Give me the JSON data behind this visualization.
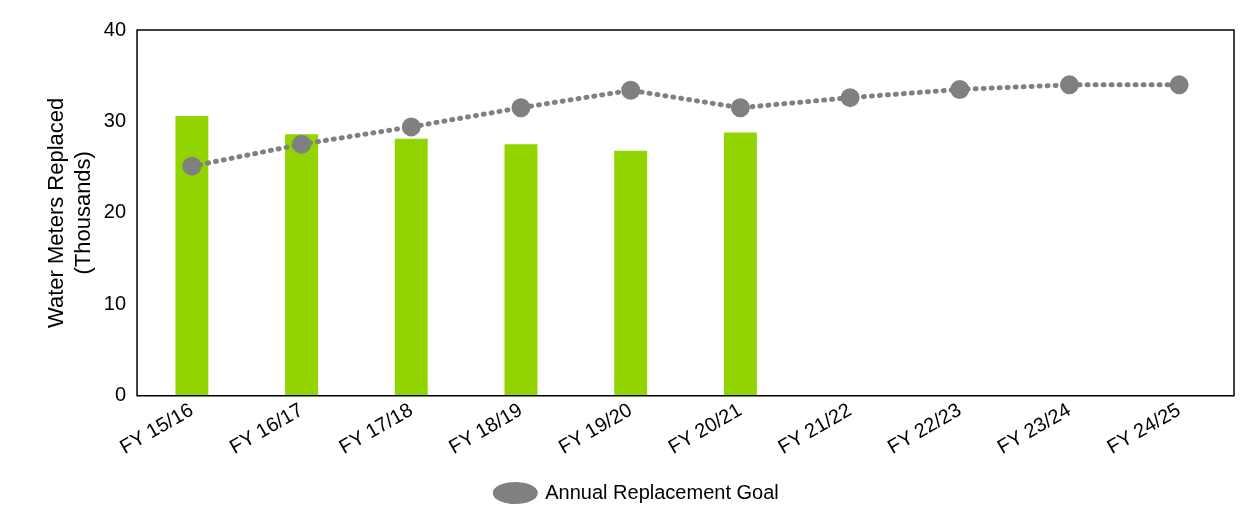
{
  "chart_data": {
    "type": "bar",
    "ylabel": "Water Meters Replaced\n(Thousands)",
    "categories": [
      "FY 15/16",
      "FY 16/17",
      "FY 17/18",
      "FY 18/19",
      "FY 19/20",
      "FY 20/21",
      "FY 21/22",
      "FY 22/23",
      "FY 23/24",
      "FY 24/25"
    ],
    "series": [
      {
        "color": "#92d400",
        "values": [
          30.6,
          28.6,
          28.1,
          27.5,
          26.8,
          28.8,
          null,
          null,
          null,
          null
        ]
      },
      {
        "type": "line",
        "name": "Annual Replacement Goal",
        "color": "#808080",
        "marker": "circle",
        "line_style": "dotted",
        "values": [
          25.1,
          27.5,
          29.4,
          31.5,
          33.4,
          31.5,
          32.6,
          33.5,
          34.0,
          34.0
        ]
      }
    ],
    "ylim": [
      0,
      40
    ],
    "yticks": [
      0,
      10,
      20,
      30,
      40
    ],
    "grid": false,
    "legend": "bottom"
  }
}
